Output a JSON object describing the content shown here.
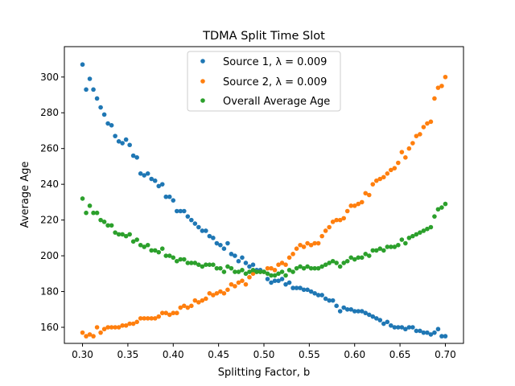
{
  "chart_data": {
    "type": "scatter",
    "title": "TDMA Split Time Slot",
    "xlabel": "Splitting Factor, b",
    "ylabel": "Average Age",
    "xlim": [
      0.28,
      0.72
    ],
    "ylim": [
      151,
      317
    ],
    "xticks": [
      0.3,
      0.35,
      0.4,
      0.45,
      0.5,
      0.55,
      0.6,
      0.65,
      0.7
    ],
    "xtick_labels": [
      "0.30",
      "0.35",
      "0.40",
      "0.45",
      "0.50",
      "0.55",
      "0.60",
      "0.65",
      "0.70"
    ],
    "yticks": [
      160,
      180,
      200,
      220,
      240,
      260,
      280,
      300
    ],
    "ytick_labels": [
      "160",
      "180",
      "200",
      "220",
      "240",
      "260",
      "280",
      "300"
    ],
    "grid": false,
    "legend_position": "top-center",
    "x": [
      0.3,
      0.304,
      0.308,
      0.312,
      0.316,
      0.32,
      0.324,
      0.328,
      0.332,
      0.336,
      0.34,
      0.344,
      0.348,
      0.352,
      0.356,
      0.36,
      0.364,
      0.368,
      0.372,
      0.376,
      0.38,
      0.384,
      0.388,
      0.392,
      0.396,
      0.4,
      0.404,
      0.408,
      0.412,
      0.416,
      0.42,
      0.424,
      0.428,
      0.432,
      0.436,
      0.44,
      0.444,
      0.448,
      0.452,
      0.456,
      0.46,
      0.464,
      0.468,
      0.472,
      0.476,
      0.48,
      0.484,
      0.488,
      0.492,
      0.496,
      0.5,
      0.504,
      0.508,
      0.512,
      0.516,
      0.52,
      0.524,
      0.528,
      0.532,
      0.536,
      0.54,
      0.544,
      0.548,
      0.552,
      0.556,
      0.56,
      0.564,
      0.568,
      0.572,
      0.576,
      0.58,
      0.584,
      0.588,
      0.592,
      0.596,
      0.6,
      0.604,
      0.608,
      0.612,
      0.616,
      0.62,
      0.624,
      0.628,
      0.632,
      0.636,
      0.64,
      0.644,
      0.648,
      0.652,
      0.656,
      0.66,
      0.664,
      0.668,
      0.672,
      0.676,
      0.68,
      0.684,
      0.688,
      0.692,
      0.696,
      0.7
    ],
    "series": [
      {
        "name": "Source 1, λ = 0.009",
        "color": "#1f77b4",
        "values": [
          307,
          293,
          299,
          293,
          288,
          283,
          279,
          274,
          273,
          267,
          264,
          263,
          265,
          262,
          256,
          255,
          246,
          245,
          246,
          243,
          242,
          239,
          240,
          233,
          233,
          231,
          225,
          225,
          225,
          222,
          220,
          218,
          216,
          214,
          214,
          211,
          210,
          207,
          206,
          204,
          207,
          201,
          200,
          197,
          199,
          196,
          194,
          195,
          192,
          192,
          191,
          187,
          185,
          186,
          186,
          187,
          184,
          185,
          182,
          182,
          182,
          181,
          181,
          180,
          179,
          178,
          178,
          176,
          175,
          175,
          172,
          169,
          171,
          170,
          170,
          169,
          169,
          169,
          168,
          167,
          166,
          165,
          164,
          162,
          163,
          161,
          160,
          160,
          160,
          159,
          160,
          160,
          158,
          158,
          157,
          157,
          156,
          157,
          159,
          155,
          155
        ]
      },
      {
        "name": "Source 2, λ = 0.009",
        "color": "#ff7f0e",
        "values": [
          157,
          155,
          156,
          155,
          160,
          157,
          159,
          160,
          160,
          160,
          160,
          161,
          161,
          162,
          162,
          163,
          165,
          165,
          165,
          165,
          165,
          166,
          168,
          168,
          167,
          168,
          168,
          171,
          172,
          171,
          172,
          175,
          174,
          175,
          176,
          179,
          178,
          179,
          180,
          179,
          181,
          184,
          183,
          185,
          186,
          184,
          188,
          190,
          191,
          191,
          191,
          193,
          193,
          192,
          195,
          196,
          195,
          199,
          201,
          204,
          206,
          205,
          207,
          206,
          207,
          207,
          211,
          214,
          216,
          219,
          220,
          220,
          221,
          225,
          228,
          228,
          229,
          230,
          235,
          234,
          240,
          242,
          243,
          244,
          246,
          248,
          249,
          252,
          258,
          255,
          260,
          263,
          267,
          268,
          272,
          274,
          275,
          288,
          294,
          295,
          300
        ]
      },
      {
        "name": "Overall Average Age",
        "color": "#2ca02c",
        "values": [
          232,
          224,
          228,
          224,
          224,
          220,
          219,
          217,
          217,
          213,
          212,
          212,
          211,
          212,
          208,
          209,
          206,
          205,
          206,
          203,
          203,
          202,
          204,
          200,
          200,
          199,
          197,
          198,
          198,
          196,
          196,
          196,
          195,
          194,
          195,
          195,
          195,
          193,
          193,
          191,
          194,
          193,
          191,
          191,
          192,
          190,
          191,
          192,
          191,
          191,
          191,
          190,
          189,
          189,
          190,
          191,
          189,
          192,
          191,
          193,
          194,
          193,
          194,
          193,
          193,
          193,
          194,
          195,
          196,
          197,
          196,
          194,
          196,
          197,
          199,
          198,
          199,
          199,
          201,
          200,
          203,
          203,
          204,
          203,
          205,
          205,
          205,
          206,
          209,
          207,
          210,
          211,
          212,
          213,
          214,
          215,
          216,
          222,
          226,
          227,
          229
        ]
      }
    ]
  }
}
